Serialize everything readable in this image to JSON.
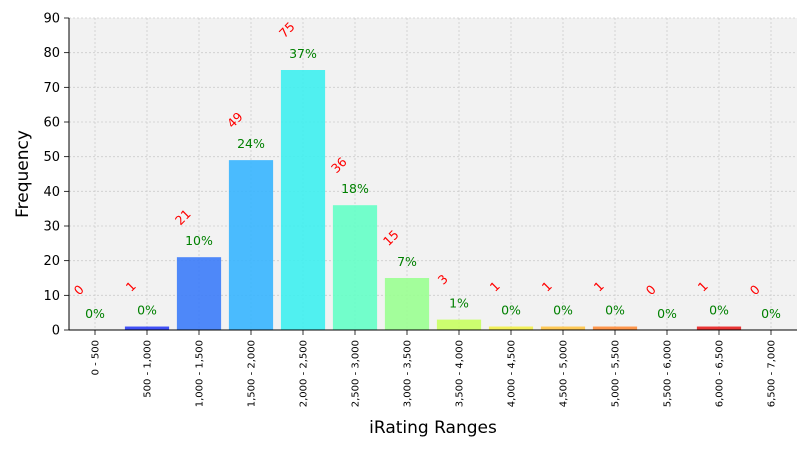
{
  "chart_data": {
    "type": "bar",
    "xlabel": "iRating Ranges",
    "ylabel": "Frequency",
    "ylim": [
      0,
      90
    ],
    "yticks": [
      0,
      10,
      20,
      30,
      40,
      50,
      60,
      70,
      80,
      90
    ],
    "grid": true,
    "categories": [
      "0 - 500",
      "500 - 1,000",
      "1,000 - 1,500",
      "1,500 - 2,000",
      "2,000 - 2,500",
      "2,500 - 3,000",
      "3,000 - 3,500",
      "3,500 - 4,000",
      "4,000 - 4,500",
      "4,500 - 5,000",
      "5,000 - 5,500",
      "5,500 - 6,000",
      "6,000 - 6,500",
      "6,500 - 7,000"
    ],
    "values": [
      0,
      1,
      21,
      49,
      75,
      36,
      15,
      3,
      1,
      1,
      1,
      0,
      1,
      0
    ],
    "count_labels": [
      "0",
      "1",
      "21",
      "49",
      "75",
      "36",
      "15",
      "3",
      "1",
      "1",
      "1",
      "0",
      "1",
      "0"
    ],
    "percent_labels": [
      "0%",
      "0%",
      "10%",
      "24%",
      "37%",
      "18%",
      "7%",
      "1%",
      "0%",
      "0%",
      "0%",
      "0%",
      "0%",
      "0%"
    ],
    "bar_colors": [
      "#2a00ff",
      "#2c3ef6",
      "#3c7cfa",
      "#37b5ff",
      "#3ef0f0",
      "#64ffc6",
      "#9aff91",
      "#c8ff60",
      "#f2f049",
      "#ffc445",
      "#ff8c3a",
      "#ff5230",
      "#e82020",
      "#bf0000"
    ],
    "count_label_color": "#ff0000",
    "percent_label_color": "#008000",
    "plot_background": "#f2f2f2",
    "grid_color": "#cccccc"
  }
}
